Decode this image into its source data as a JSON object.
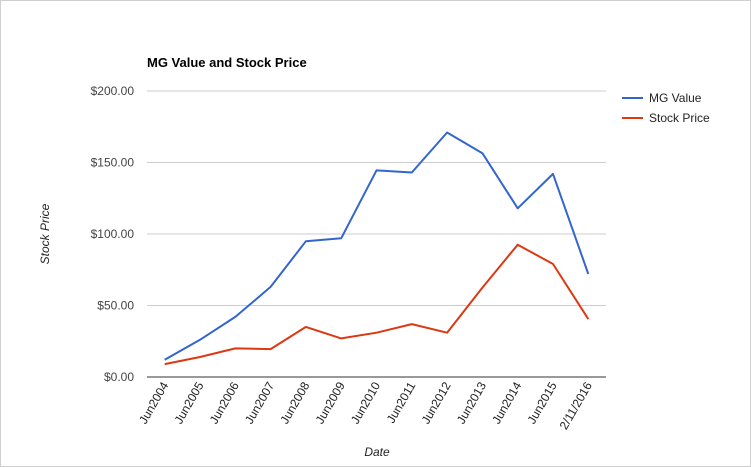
{
  "chart_data": {
    "type": "line",
    "title": "MG Value and Stock Price",
    "xlabel": "Date",
    "ylabel": "Stock Price",
    "categories": [
      "Jun2004",
      "Jun2005",
      "Jun2006",
      "Jun2007",
      "Jun2008",
      "Jun2009",
      "Jun2010",
      "Jun2011",
      "Jun2012",
      "Jun2013",
      "Jun2014",
      "Jun2015",
      "2/11/2016"
    ],
    "y_ticks": [
      "$0.00",
      "$50.00",
      "$100.00",
      "$150.00",
      "$200.00"
    ],
    "ylim": [
      0,
      200
    ],
    "grid": true,
    "legend_position": "right",
    "series": [
      {
        "name": "MG Value",
        "color": "#3366cc",
        "values": [
          12,
          26,
          42,
          63,
          95,
          97,
          144.5,
          143,
          171,
          156.5,
          118,
          142,
          72
        ]
      },
      {
        "name": "Stock Price",
        "color": "#dc3912",
        "values": [
          9,
          14,
          20,
          19.5,
          35,
          27,
          31,
          37,
          31,
          62.5,
          92.5,
          79,
          40.5
        ]
      }
    ]
  }
}
